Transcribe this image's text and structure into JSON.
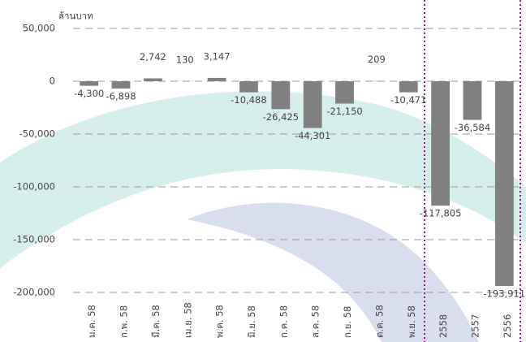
{
  "chart_data": {
    "type": "bar",
    "y_axis_label": "ล้านบาท",
    "categories": [
      "ม.ค. 58",
      "ก.พ. 58",
      "มี.ค. 58",
      "เม.ย. 58",
      "พ.ค. 58",
      "มิ.ย. 58",
      "ก.ค. 58",
      "ส.ค. 58",
      "ก.ย. 58",
      "ต.ค. 58",
      "พ.ย. 58",
      "2558",
      "2557",
      "2556"
    ],
    "values": [
      -4300,
      -6898,
      2742,
      130,
      3147,
      -10488,
      -26425,
      -44301,
      -21150,
      209,
      -10471,
      -117805,
      -36584,
      -193911
    ],
    "value_labels": [
      "-4,300",
      "-6,898",
      "2,742",
      "130",
      "3,147",
      "-10,488",
      "-26,425",
      "-44,301",
      "-21,150",
      "209",
      "-10,471",
      "-117,805",
      "-36,584",
      "-193,911"
    ],
    "color": "#808080",
    "ylim": [
      -200000,
      50000
    ],
    "yticks": [
      {
        "value": -200000,
        "label": "-200,000"
      },
      {
        "value": -150000,
        "label": "-150,000"
      },
      {
        "value": -100000,
        "label": "-100,000"
      },
      {
        "value": -50000,
        "label": "-50,000"
      },
      0,
      {
        "value": 50000,
        "label": "50,000"
      }
    ],
    "grid": true
  }
}
